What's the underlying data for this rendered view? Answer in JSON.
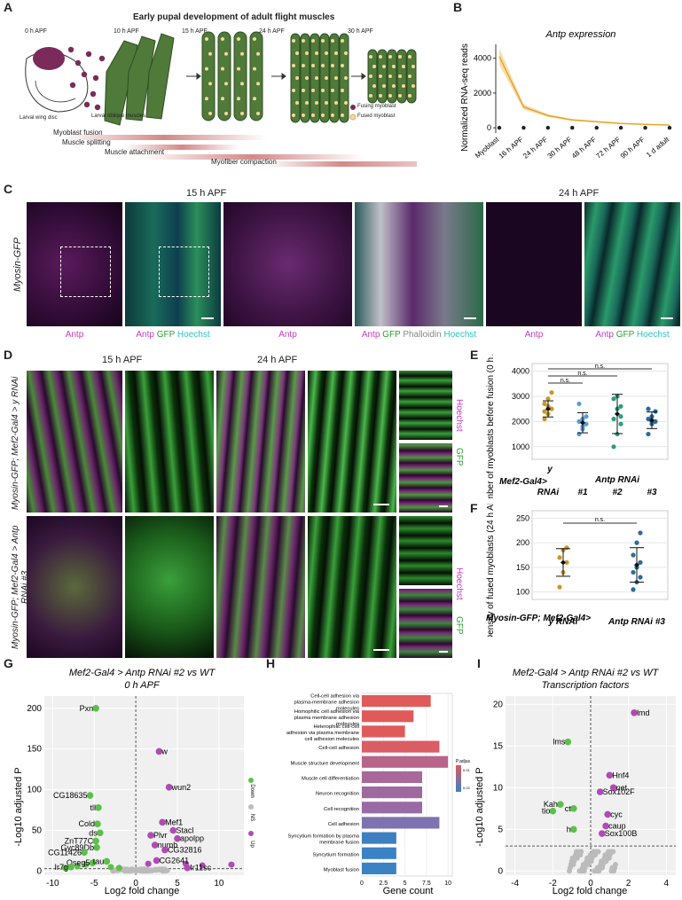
{
  "panels": {
    "A": "A",
    "B": "B",
    "C": "C",
    "D": "D",
    "E": "E",
    "F": "F",
    "G": "G",
    "H": "H",
    "I": "I"
  },
  "panelA": {
    "title": "Early pupal development of adult flight muscles",
    "stages": [
      "0 h APF",
      "10 h APF",
      "15 h APF",
      "24 h APF",
      "30 h APF"
    ],
    "wing_disc_label": "Larval wing disc",
    "oblique_label": "Larval oblique muscles",
    "legend": [
      "Fusing myoblast",
      "Fused myoblast"
    ],
    "processes": [
      "Myoblast fusion",
      "Muscle splitting",
      "Muscle attachment",
      "Myofiber compaction"
    ],
    "colors": {
      "muscle": "#4f7a3a",
      "fusing": "#7b2b5a",
      "fused": "#f5d79b",
      "process": "#c96a6a"
    }
  },
  "panelC": {
    "genotype": "Myosin-GFP",
    "time1": "15 h APF",
    "time2": "24 h APF",
    "captions": [
      [
        {
          "t": "Antp",
          "c": "#c23bc2"
        }
      ],
      [
        {
          "t": "Antp ",
          "c": "#c23bc2"
        },
        {
          "t": "GFP ",
          "c": "#2fa02f"
        },
        {
          "t": "Hoechst",
          "c": "#29c5c5"
        }
      ],
      [
        {
          "t": "Antp",
          "c": "#c23bc2"
        }
      ],
      [
        {
          "t": "Antp ",
          "c": "#c23bc2"
        },
        {
          "t": "GFP ",
          "c": "#2fa02f"
        },
        {
          "t": "Phalloidin ",
          "c": "#888888"
        },
        {
          "t": "Hoechst",
          "c": "#29c5c5"
        }
      ],
      [
        {
          "t": "Antp",
          "c": "#c23bc2"
        }
      ],
      [
        {
          "t": "Antp ",
          "c": "#c23bc2"
        },
        {
          "t": "GFP ",
          "c": "#2fa02f"
        },
        {
          "t": "Hoechst",
          "c": "#29c5c5"
        }
      ]
    ]
  },
  "panelD": {
    "time1": "15 h APF",
    "time2": "24 h APF",
    "row1": "Myosin-GFP; Mef2-Gal4 > y RNAi",
    "row2": "Myosin-GFP; Mef2-Gal4 > Antp RNAi #3",
    "side_hoechst": "Hoechst",
    "side_gfp": "GFP"
  },
  "chart_data": [
    {
      "id": "B",
      "type": "line",
      "title": "Antp expression",
      "ylabel": "Normalized RNA-seq reads",
      "categories": [
        "Myoblast",
        "16 h APF",
        "24 h APF",
        "30 h APF",
        "48 h APF",
        "72 h APF",
        "90 h APF",
        "1 d adult"
      ],
      "series": [
        {
          "values": [
            4100,
            1200,
            700,
            450,
            350,
            250,
            200,
            150
          ]
        }
      ],
      "baseline_points": [
        0,
        0,
        0,
        0,
        0,
        0,
        0,
        0
      ],
      "yticks": [
        0,
        2000,
        4000
      ],
      "ylim": [
        -300,
        4800
      ],
      "colors": {
        "line": "#e6a52a",
        "band": "#f7dfae"
      }
    },
    {
      "id": "E",
      "type": "scatter",
      "ylabel": "Number of myoblasts before fusion (0 h APF)",
      "xlabel_prefix": "Mef2-Gal4>",
      "group_label": "Antp RNAi",
      "categories": [
        "y RNAi",
        "#1",
        "#2",
        "#3"
      ],
      "cat_top": [
        "y",
        "",
        "",
        ""
      ],
      "cat_bottom": [
        "RNAi",
        "#1",
        "#2",
        "#3"
      ],
      "points": [
        [
          2100,
          2300,
          2500,
          2700,
          2900,
          3150,
          2400,
          2600
        ],
        [
          1500,
          1700,
          1900,
          2000,
          2100,
          2200,
          2700,
          1800
        ],
        [
          1000,
          1500,
          1900,
          2100,
          2500,
          2600,
          2900,
          3000,
          2200
        ],
        [
          1500,
          1900,
          2000,
          2100,
          2200,
          2400,
          2500,
          2000
        ]
      ],
      "mean": [
        2500,
        1950,
        2300,
        2050
      ],
      "sd": [
        320,
        400,
        780,
        330
      ],
      "yticks": [
        1000,
        2000,
        3000,
        4000
      ],
      "ylim": [
        500,
        4300
      ],
      "significance": [
        "n.s.",
        "n.s.",
        "n.s."
      ],
      "colors": [
        "#c9962a",
        "#5b9bd5",
        "#2a9d7f",
        "#2b6a9e"
      ]
    },
    {
      "id": "F",
      "type": "scatter",
      "ylabel": "Density of fused myoblasts (24 h APF)",
      "xlabel_prefix": "Myosin-GFP; Mef2-Gal4>",
      "categories": [
        "y RNAi",
        "Antp RNAi #3"
      ],
      "points": [
        [
          110,
          140,
          160,
          170,
          185,
          190
        ],
        [
          105,
          120,
          130,
          140,
          150,
          160,
          175,
          200,
          220
        ]
      ],
      "mean": [
        160,
        155
      ],
      "sd": [
        28,
        35
      ],
      "yticks": [
        100,
        150,
        200,
        250
      ],
      "ylim": [
        85,
        265
      ],
      "significance": [
        "n.s."
      ],
      "colors": [
        "#c9962a",
        "#2b6a9e"
      ]
    },
    {
      "id": "G",
      "type": "scatter",
      "title": "Mef2-Gal4 > Antp RNAi #2 vs WT",
      "subtitle": "0 h APF",
      "xlabel": "Log2 fold change",
      "ylabel": "-Log10 adjusted P",
      "xticks": [
        -10,
        -5,
        0,
        5,
        10
      ],
      "yticks": [
        0,
        50,
        100,
        150,
        200
      ],
      "xlim": [
        -11,
        13
      ],
      "ylim": [
        -5,
        215
      ],
      "legend": [
        "Down",
        "NS",
        "Up"
      ],
      "legend_colors": [
        "#5cbf4a",
        "#bbbbbb",
        "#b04bb5"
      ],
      "labels": [
        {
          "t": "Pxn",
          "x": -4.8,
          "y": 200,
          "g": "down"
        },
        {
          "t": "CG18635",
          "x": -5.5,
          "y": 93,
          "g": "down"
        },
        {
          "t": "tll",
          "x": -4.5,
          "y": 78,
          "g": "down"
        },
        {
          "t": "Cold",
          "x": -4.6,
          "y": 58,
          "g": "down"
        },
        {
          "t": "ds",
          "x": -4.3,
          "y": 47,
          "g": "down"
        },
        {
          "t": "ZnT77C",
          "x": -4.8,
          "y": 37,
          "g": "down"
        },
        {
          "t": "Gyc89Db",
          "x": -4.7,
          "y": 29,
          "g": "down"
        },
        {
          "t": "CG11426",
          "x": -6.2,
          "y": 23,
          "g": "down"
        },
        {
          "t": "Oseg5",
          "x": -5.2,
          "y": 10,
          "g": "down"
        },
        {
          "t": "tau",
          "x": -3.5,
          "y": 12,
          "g": "down"
        },
        {
          "t": "Ir7g",
          "x": -7.8,
          "y": 5,
          "g": "down"
        },
        {
          "t": "w",
          "x": 2.8,
          "y": 147,
          "g": "up"
        },
        {
          "t": "wun2",
          "x": 4.0,
          "y": 103,
          "g": "up"
        },
        {
          "t": "Mef1",
          "x": 3.2,
          "y": 60,
          "g": "up"
        },
        {
          "t": "Stacl",
          "x": 4.5,
          "y": 50,
          "g": "up"
        },
        {
          "t": "apolpp",
          "x": 5.0,
          "y": 40,
          "g": "up"
        },
        {
          "t": "Plvr",
          "x": 1.8,
          "y": 44,
          "g": "up"
        },
        {
          "t": "numb",
          "x": 2.3,
          "y": 32,
          "g": "up"
        },
        {
          "t": "CG32816",
          "x": 3.5,
          "y": 26,
          "g": "up"
        },
        {
          "t": "CG2641",
          "x": 2.5,
          "y": 13,
          "g": "up"
        },
        {
          "t": "Ir11sc",
          "x": 6.2,
          "y": 4,
          "g": "up"
        }
      ],
      "extra_points": [
        {
          "x": -8.5,
          "y": 4,
          "g": "down"
        },
        {
          "x": -7,
          "y": 6,
          "g": "down"
        },
        {
          "x": -6,
          "y": 8,
          "g": "down"
        },
        {
          "x": -3,
          "y": 5,
          "g": "down"
        },
        {
          "x": -2,
          "y": 4,
          "g": "down"
        },
        {
          "x": 8,
          "y": 7,
          "g": "up"
        },
        {
          "x": 11.5,
          "y": 8,
          "g": "up"
        },
        {
          "x": 6,
          "y": 9,
          "g": "up"
        },
        {
          "x": 1.5,
          "y": 9,
          "g": "up"
        },
        {
          "x": -1,
          "y": 1,
          "g": "ns"
        },
        {
          "x": 0.5,
          "y": 1,
          "g": "ns"
        },
        {
          "x": 1,
          "y": 2,
          "g": "ns"
        },
        {
          "x": -0.5,
          "y": 2,
          "g": "ns"
        },
        {
          "x": 0,
          "y": 0.5,
          "g": "ns"
        }
      ]
    },
    {
      "id": "H",
      "type": "bar",
      "orientation": "horizontal",
      "xlabel": "Gene count",
      "categories": [
        "Cell-cell adhesion via plasma-membrane adhesion molecules",
        "Homophilic cell adhesion via plasma membrane adhesion molecules",
        "Heterophilic cell-cell adhesion via plasma membrane cell adhesion molecules",
        "Cell-cell adhesion",
        "Muscle structure development",
        "Muscle cell differentiation",
        "Neuron recognition",
        "Cell recognition",
        "Cell adhesion",
        "Syncytium formation by plasma membrane fusion",
        "Syncytium formation",
        "Myoblast fusion"
      ],
      "values": [
        8,
        6,
        5,
        9,
        10,
        7,
        7,
        7,
        9,
        4,
        4,
        4
      ],
      "bar_colors": [
        "#e05a5a",
        "#e05a5a",
        "#e05a5a",
        "#da5c64",
        "#b8648a",
        "#a8689a",
        "#a068a0",
        "#9a6aa6",
        "#7e72b0",
        "#3d7fc0",
        "#3a82c4",
        "#3a82c4"
      ],
      "xticks": [
        0,
        2.5,
        5.0,
        7.5,
        10.0
      ],
      "xlim": [
        0,
        10.5
      ],
      "legend_title": "P.adjust",
      "legend_ticks": [
        "0.01",
        "0.02"
      ]
    },
    {
      "id": "I",
      "type": "scatter",
      "title": "Mef2-Gal4 > Antp RNAi #2 vs WT",
      "subtitle": "Transcription factors",
      "xlabel": "Log2 fold change",
      "ylabel": "-Log10 adjusted P",
      "xticks": [
        -4,
        -2,
        0,
        2,
        4
      ],
      "yticks": [
        0,
        5,
        10,
        15,
        20
      ],
      "xlim": [
        -4.5,
        4.5
      ],
      "ylim": [
        -0.5,
        21
      ],
      "labels": [
        {
          "t": "lmd",
          "x": 2.3,
          "y": 19,
          "g": "up"
        },
        {
          "t": "lms",
          "x": -1.2,
          "y": 15.5,
          "g": "down"
        },
        {
          "t": "Hnf4",
          "x": 1.0,
          "y": 11.5,
          "g": "up"
        },
        {
          "t": "net",
          "x": 1.2,
          "y": 10,
          "g": "up"
        },
        {
          "t": "Sox102F",
          "x": 0.5,
          "y": 9.5,
          "g": "up"
        },
        {
          "t": "Kah",
          "x": -1.6,
          "y": 8,
          "g": "down"
        },
        {
          "t": "tio",
          "x": -2.0,
          "y": 7.2,
          "g": "down"
        },
        {
          "t": "ct",
          "x": -0.9,
          "y": 7.5,
          "g": "down"
        },
        {
          "t": "cyc",
          "x": 0.9,
          "y": 6.8,
          "g": "up"
        },
        {
          "t": "caup",
          "x": 0.8,
          "y": 5.4,
          "g": "up"
        },
        {
          "t": "h",
          "x": -0.9,
          "y": 5.0,
          "g": "down"
        },
        {
          "t": "Sox100B",
          "x": 0.6,
          "y": 4.5,
          "g": "up"
        }
      ],
      "threshold": 3
    }
  ]
}
